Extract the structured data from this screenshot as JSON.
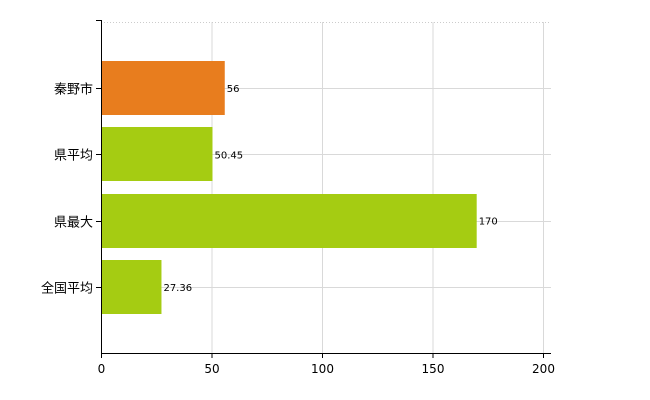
{
  "chart_data": {
    "type": "bar",
    "orientation": "horizontal",
    "categories": [
      "秦野市",
      "県平均",
      "県最大",
      "全国平均"
    ],
    "values": [
      56,
      50.45,
      170,
      27.36
    ],
    "value_labels": [
      "56",
      "50.45",
      "170",
      "27.36"
    ],
    "bar_colors": [
      "#e87d1e",
      "#a5cc12",
      "#a5cc12",
      "#a5cc12"
    ],
    "xlim": [
      0,
      200
    ],
    "x_ticks": [
      0,
      50,
      100,
      150,
      200
    ],
    "x_tick_labels": [
      "0",
      "50",
      "100",
      "150",
      "200"
    ],
    "grid": true,
    "title": "",
    "xlabel": "",
    "ylabel": ""
  }
}
